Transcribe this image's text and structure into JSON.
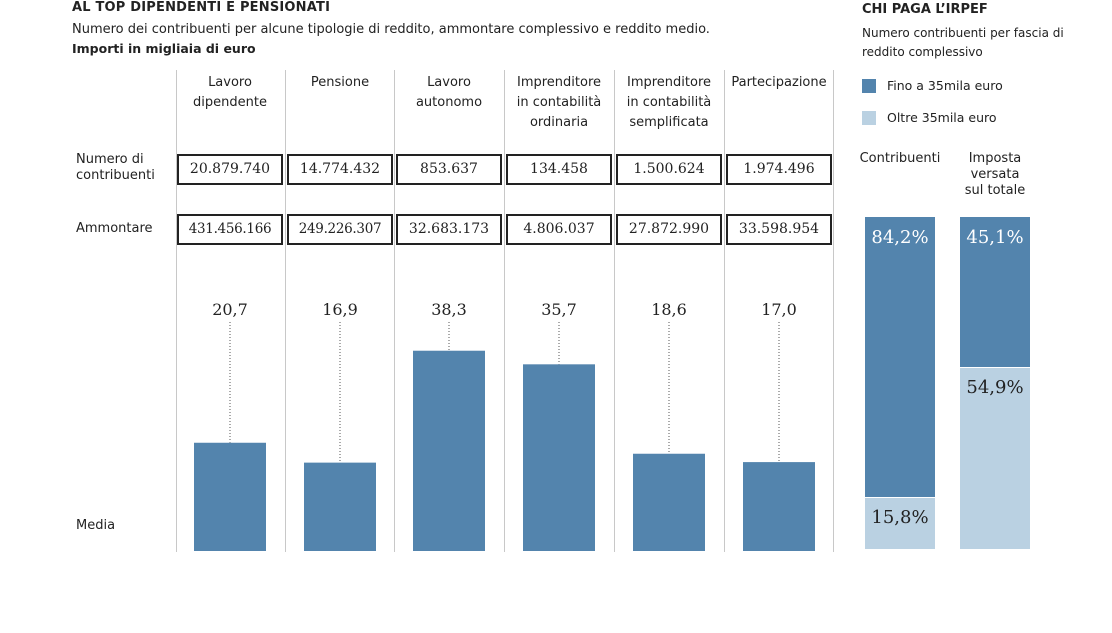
{
  "left_panel": {
    "title": "AL TOP DIPENDENTI E PENSIONATI",
    "subtitle": "Numero dei contribuenti per alcune tipologie di reddito, ammontare complessivo e reddito medio.",
    "units": "Importi in migliaia di euro",
    "row_labels": {
      "numero": "Numero di contribuenti",
      "ammontare": "Ammontare",
      "media": "Media"
    },
    "categories": [
      {
        "label": "Lavoro dipendente",
        "numero": "20.879.740",
        "ammontare": "431.456.166"
      },
      {
        "label": "Pensione",
        "numero": "14.774.432",
        "ammontare": "249.226.307"
      },
      {
        "label": "Lavoro autonomo",
        "numero": "853.637",
        "ammontare": "32.683.173"
      },
      {
        "label": "Imprenditore in contabilità ordinaria",
        "numero": "134.458",
        "ammontare": "4.806.037"
      },
      {
        "label": "Imprenditore in contabilità semplificata",
        "numero": "1.500.624",
        "ammontare": "27.872.990"
      },
      {
        "label": "Partecipazione",
        "numero": "1.974.496",
        "ammontare": "33.598.954"
      }
    ]
  },
  "right_panel": {
    "title": "CHI PAGA L’IRPEF",
    "subtitle": "Numero contribuenti per fascia di reddito complessivo",
    "legend": [
      {
        "label": "Fino a 35mila euro",
        "color": "#5384ad"
      },
      {
        "label": "Oltre 35mila euro",
        "color": "#bad1e2"
      }
    ],
    "columns": [
      {
        "label": "Contribuenti",
        "segments": [
          {
            "value": 84.2,
            "text": "84,2%"
          },
          {
            "value": 15.8,
            "text": "15,8%"
          }
        ]
      },
      {
        "label": "Imposta versata sul totale",
        "segments": [
          {
            "value": 45.1,
            "text": "45,1%"
          },
          {
            "value": 54.9,
            "text": "54,9%"
          }
        ]
      }
    ]
  },
  "chart_data": [
    {
      "type": "bar",
      "title": "",
      "xlabel": "",
      "ylabel": "Media",
      "categories": [
        "Lavoro dipendente",
        "Pensione",
        "Lavoro autonomo",
        "Imprenditore in contabilità ordinaria",
        "Imprenditore in contabilità semplificata",
        "Partecipazione"
      ],
      "values": [
        20.7,
        16.9,
        38.3,
        35.7,
        18.6,
        17.0
      ],
      "value_labels": [
        "20,7",
        "16,9",
        "38,3",
        "35,7",
        "18,6",
        "17,0"
      ],
      "ylim": [
        0,
        48
      ],
      "grid": false,
      "color": "#5384ad"
    },
    {
      "type": "bar",
      "stacked": true,
      "percent": true,
      "categories": [
        "Contribuenti",
        "Imposta versata sul totale"
      ],
      "series": [
        {
          "name": "Fino a 35mila euro",
          "values": [
            84.2,
            45.1
          ]
        },
        {
          "name": "Oltre 35mila euro",
          "values": [
            15.8,
            54.9
          ]
        }
      ],
      "ylim": [
        0,
        100
      ],
      "legend": "top"
    }
  ]
}
